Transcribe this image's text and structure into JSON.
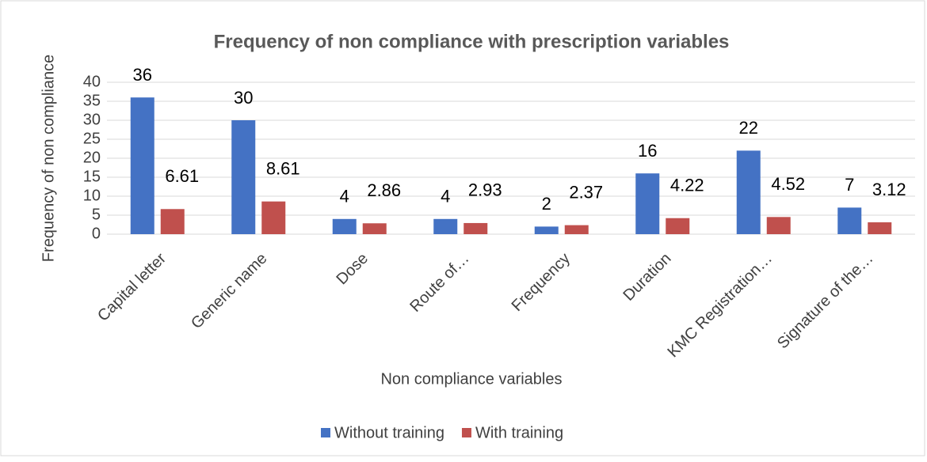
{
  "chart_data": {
    "type": "bar",
    "title": "Frequency of non compliance with prescription variables",
    "x_label": "Non compliance variables",
    "y_label": "Frequency of non compliance",
    "categories": [
      "Capital letter",
      "Generic  name",
      "Dose",
      "Route of…",
      "Frequency",
      "Duration",
      "KMC Registration…",
      "Signature of the…"
    ],
    "series": [
      {
        "name": "Without training",
        "color": "#4472c4",
        "values": [
          36,
          30,
          4,
          4,
          2,
          16,
          22,
          7
        ]
      },
      {
        "name": "With training",
        "color": "#c0504d",
        "values": [
          6.61,
          8.61,
          2.86,
          2.93,
          2.37,
          4.22,
          4.52,
          3.12
        ]
      }
    ],
    "ylim": [
      0,
      40
    ],
    "yticks": [
      0,
      5,
      10,
      15,
      20,
      25,
      30,
      35,
      40
    ],
    "grid": true,
    "legend": "bottom"
  }
}
